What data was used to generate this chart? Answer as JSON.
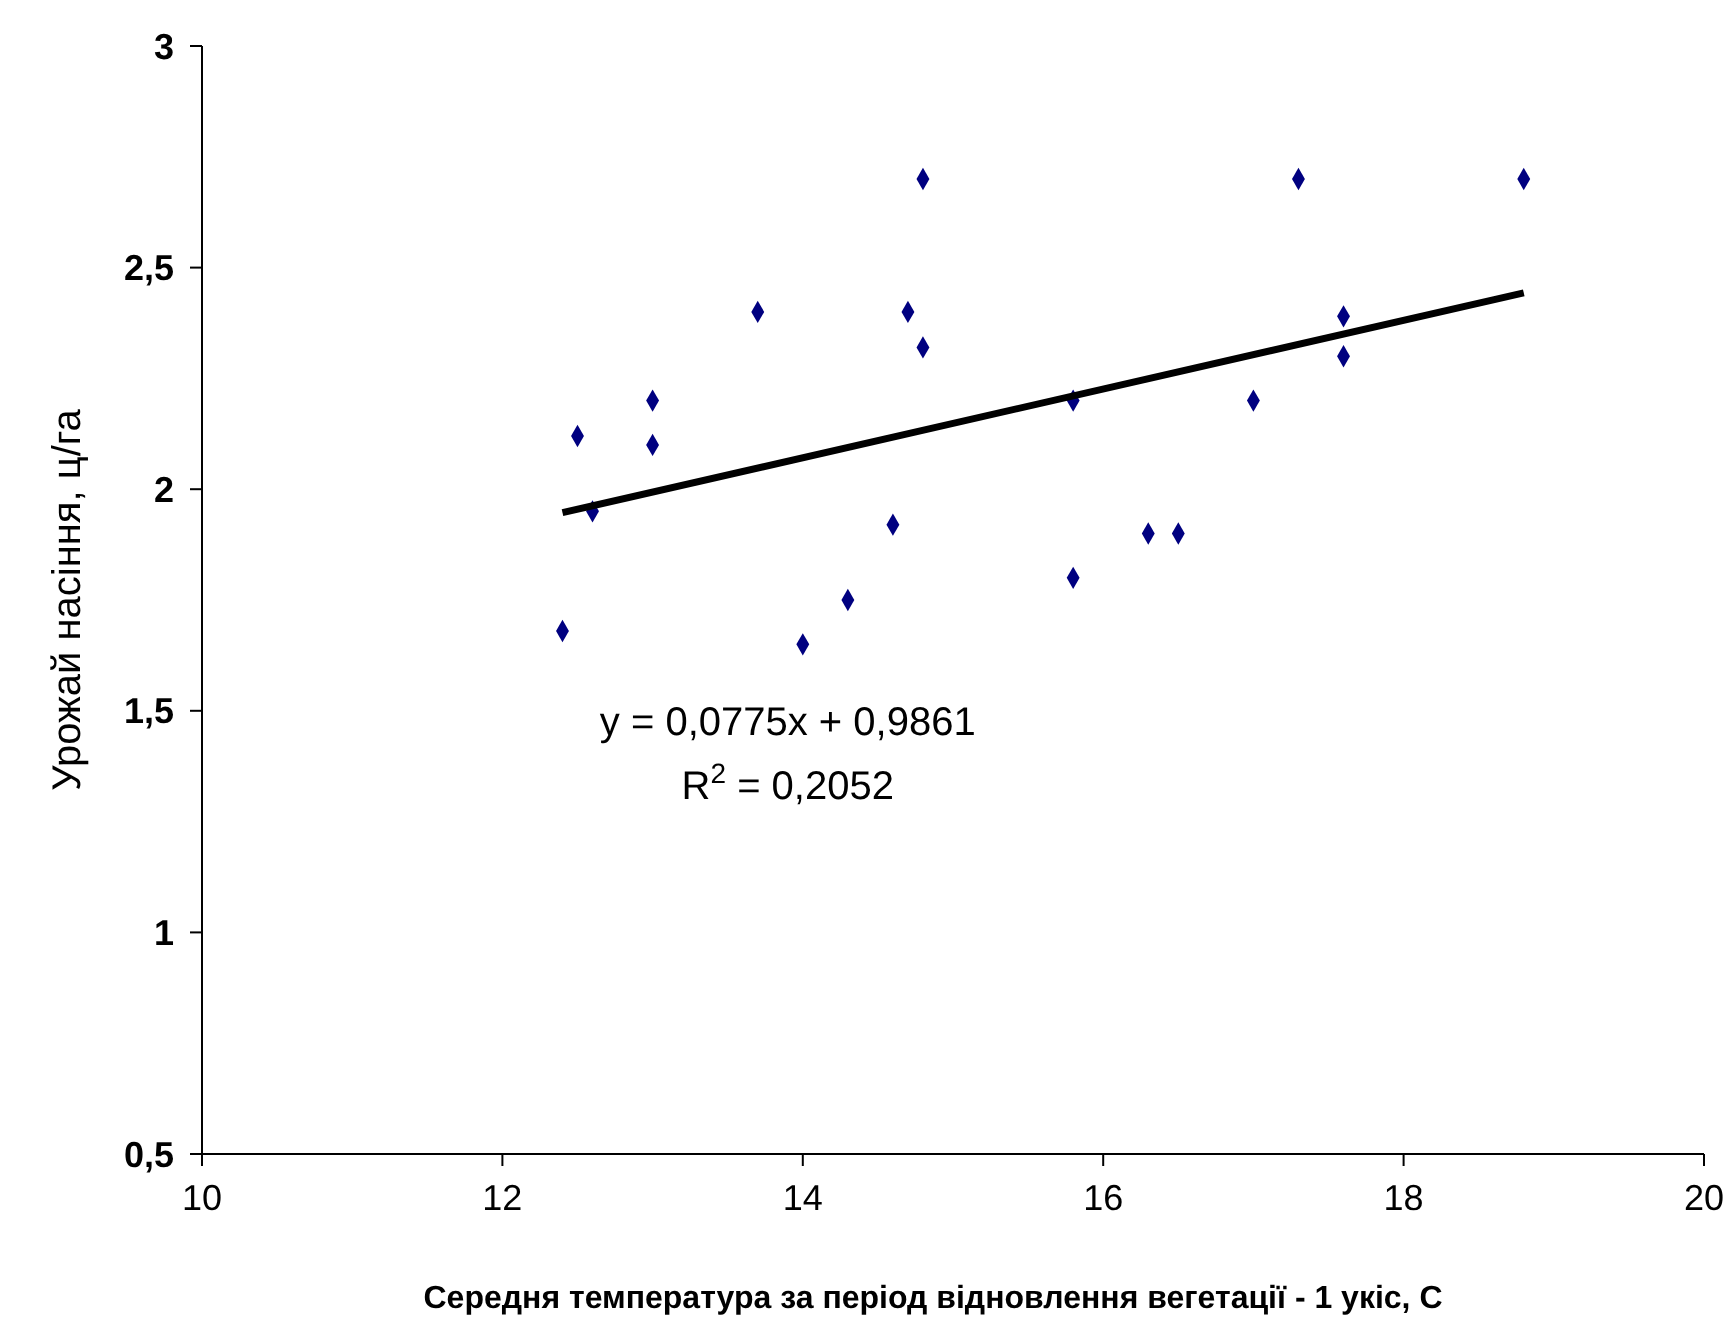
{
  "chart_data": {
    "type": "scatter",
    "xlabel": "Середня температура за період відновлення вегетації - 1 укіс,  С",
    "ylabel": "Урожай насіння, ц/га",
    "xlim": [
      10,
      20
    ],
    "xticks": [
      10,
      12,
      14,
      16,
      18,
      20
    ],
    "ylim": [
      0.5,
      3
    ],
    "yticks": [
      {
        "value": 0.5,
        "label": "0,5"
      },
      1,
      {
        "value": 1.5,
        "label": "1,5"
      },
      2,
      {
        "value": 2.5,
        "label": "2,5"
      },
      3
    ],
    "grid": false,
    "marker": "diamond",
    "annotations": [
      "y = 0,0775x + 0,9861",
      "R$^{2}$ = 0,2052"
    ],
    "series": [
      {
        "color": "#000080",
        "x": [
          12.4,
          12.5,
          12.6,
          13,
          13,
          13.7,
          14,
          14.3,
          14.6,
          14.7,
          14.8,
          14.8,
          15.8,
          15.8,
          16.3,
          16.5,
          17,
          17.3,
          17.6,
          17.6,
          18.8
        ],
        "values": [
          1.68,
          2.12,
          1.95,
          2.2,
          2.1,
          2.4,
          1.65,
          1.75,
          1.92,
          2.4,
          2.7,
          2.32,
          2.2,
          1.8,
          1.9,
          1.9,
          2.2,
          2.7,
          2.39,
          2.3,
          2.7
        ]
      },
      {
        "type": "line",
        "marker": "none",
        "color": "#000000",
        "x": [
          12.4,
          18.8
        ],
        "values": [
          1.947,
          2.443
        ]
      }
    ]
  }
}
